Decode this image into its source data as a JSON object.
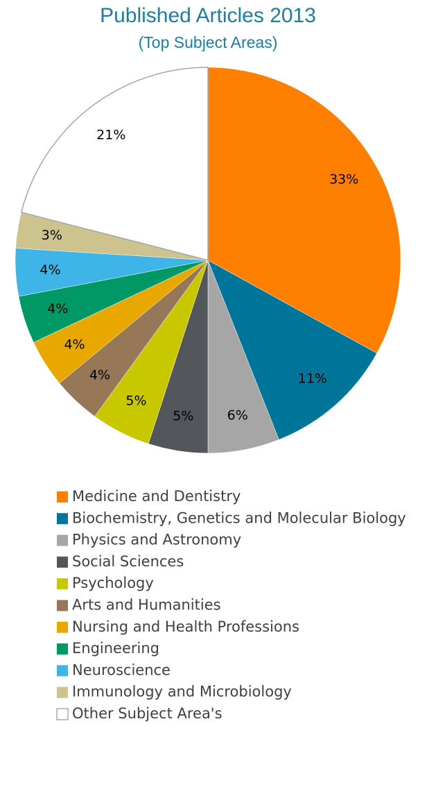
{
  "chart_data": {
    "type": "pie",
    "title": "Published Articles 2013",
    "subtitle": "(Top Subject Areas)",
    "categories": [
      "Medicine and Dentistry",
      "Biochemistry, Genetics and Molecular Biology",
      "Physics and Astronomy",
      "Social Sciences",
      "Psychology",
      "Arts and Humanities",
      "Nursing and Health Professions",
      "Engineering",
      "Neuroscience",
      "Immunology and Microbiology",
      "Other Subject Area's"
    ],
    "values": [
      33,
      11,
      6,
      5,
      5,
      4,
      4,
      4,
      4,
      3,
      21
    ],
    "value_labels": [
      "33%",
      "11%",
      "6%",
      "5%",
      "5%",
      "4%",
      "4%",
      "4%",
      "4%",
      "3%",
      "21%"
    ],
    "colors": [
      "#ff8000",
      "#00759a",
      "#a6a6a6",
      "#53565a",
      "#c8c800",
      "#967859",
      "#e8a800",
      "#009966",
      "#3eb5e6",
      "#cdc38e",
      "#ffffff"
    ],
    "legend": "bottom"
  }
}
